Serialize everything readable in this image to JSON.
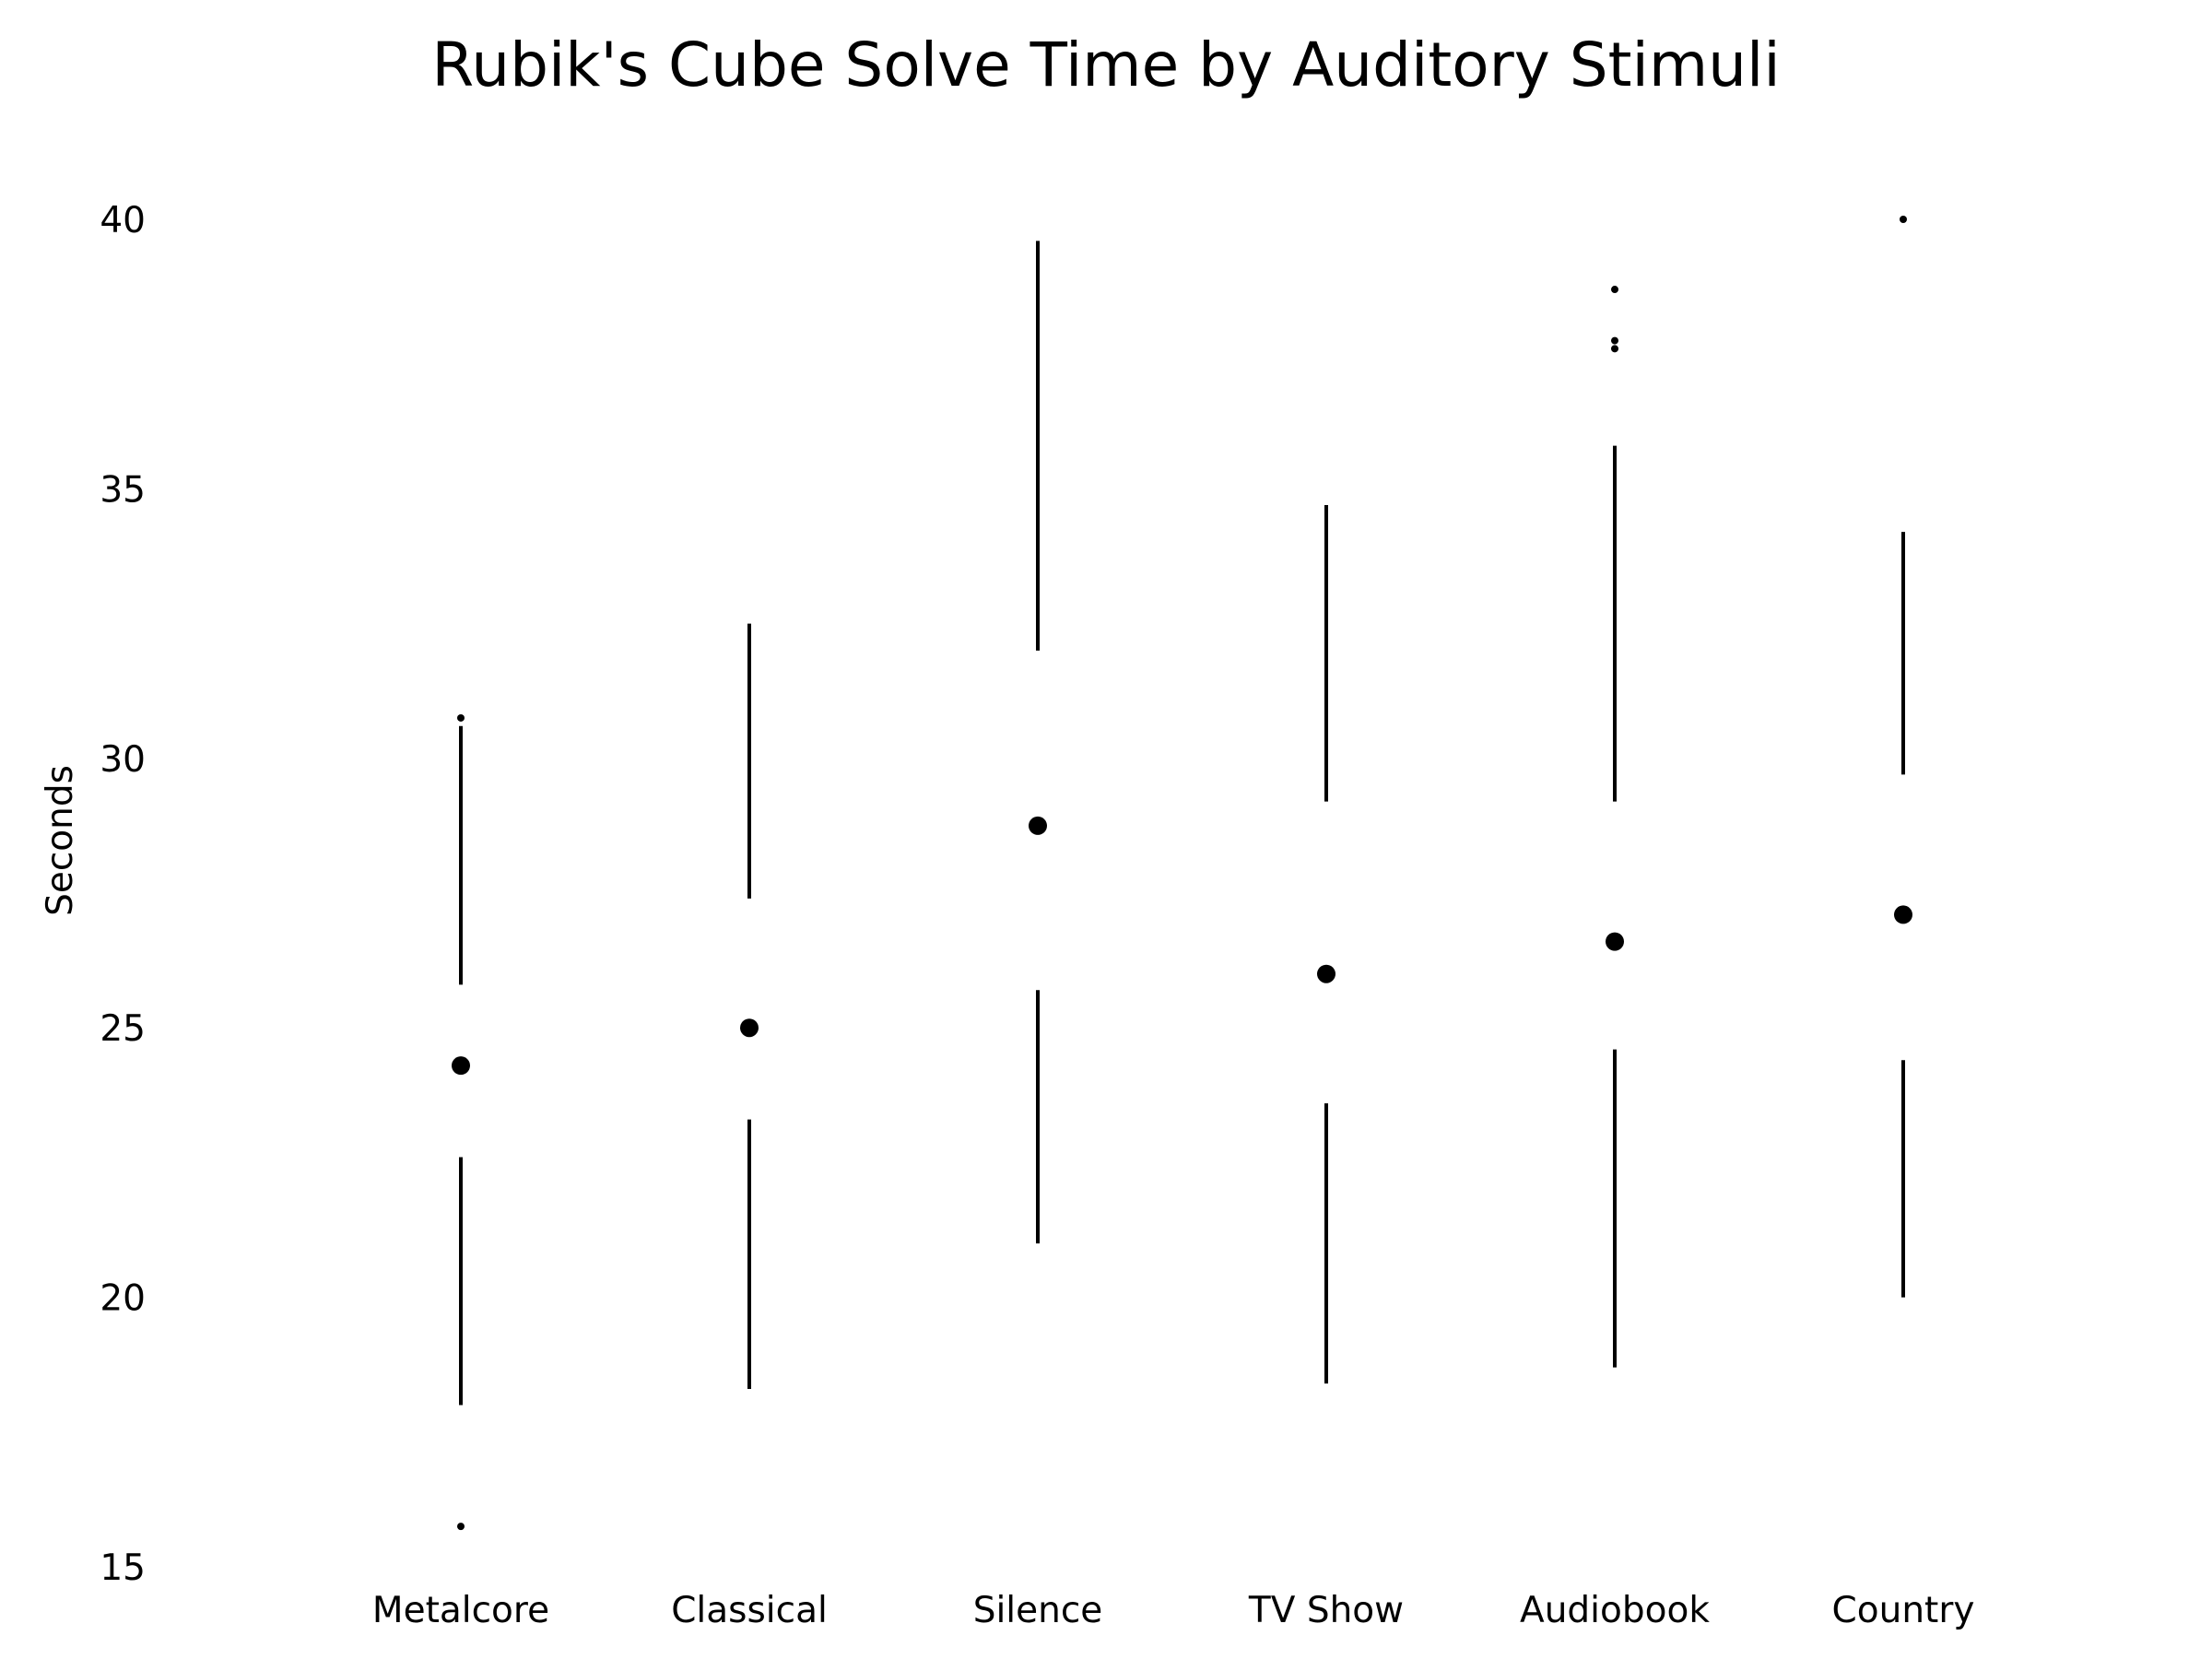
{
  "chart_data": {
    "type": "boxplot",
    "title": "Rubik's Cube Solve Time by Auditory Stimuli",
    "xlabel": "",
    "ylabel": "Seconds",
    "ylim": [
      15,
      40
    ],
    "yticks": [
      15,
      20,
      25,
      30,
      35,
      40
    ],
    "grid": false,
    "categories": [
      "Metalcore",
      "Classical",
      "Silence",
      "TV Show",
      "Audiobook",
      "Country"
    ],
    "groups": [
      {
        "category": "Metalcore",
        "whisker_low": 18.0,
        "q1": 22.6,
        "median": 24.3,
        "q3": 25.8,
        "whisker_high": 30.6,
        "outliers": [
          15.75,
          30.75
        ]
      },
      {
        "category": "Classical",
        "whisker_low": 18.3,
        "q1": 23.3,
        "median": 25.0,
        "q3": 27.4,
        "whisker_high": 32.5,
        "outliers": []
      },
      {
        "category": "Silence",
        "whisker_low": 21.0,
        "q1": 25.7,
        "median": 28.75,
        "q3": 32.0,
        "whisker_high": 39.6,
        "outliers": []
      },
      {
        "category": "TV Show",
        "whisker_low": 18.4,
        "q1": 23.6,
        "median": 26.0,
        "q3": 29.2,
        "whisker_high": 34.7,
        "outliers": []
      },
      {
        "category": "Audiobook",
        "whisker_low": 18.7,
        "q1": 24.6,
        "median": 26.6,
        "q3": 29.2,
        "whisker_high": 35.8,
        "outliers": [
          37.6,
          37.75,
          38.7
        ]
      },
      {
        "category": "Country",
        "whisker_low": 20.0,
        "q1": 24.4,
        "median": 27.1,
        "q3": 29.7,
        "whisker_high": 34.2,
        "outliers": [
          40.0
        ]
      }
    ]
  }
}
